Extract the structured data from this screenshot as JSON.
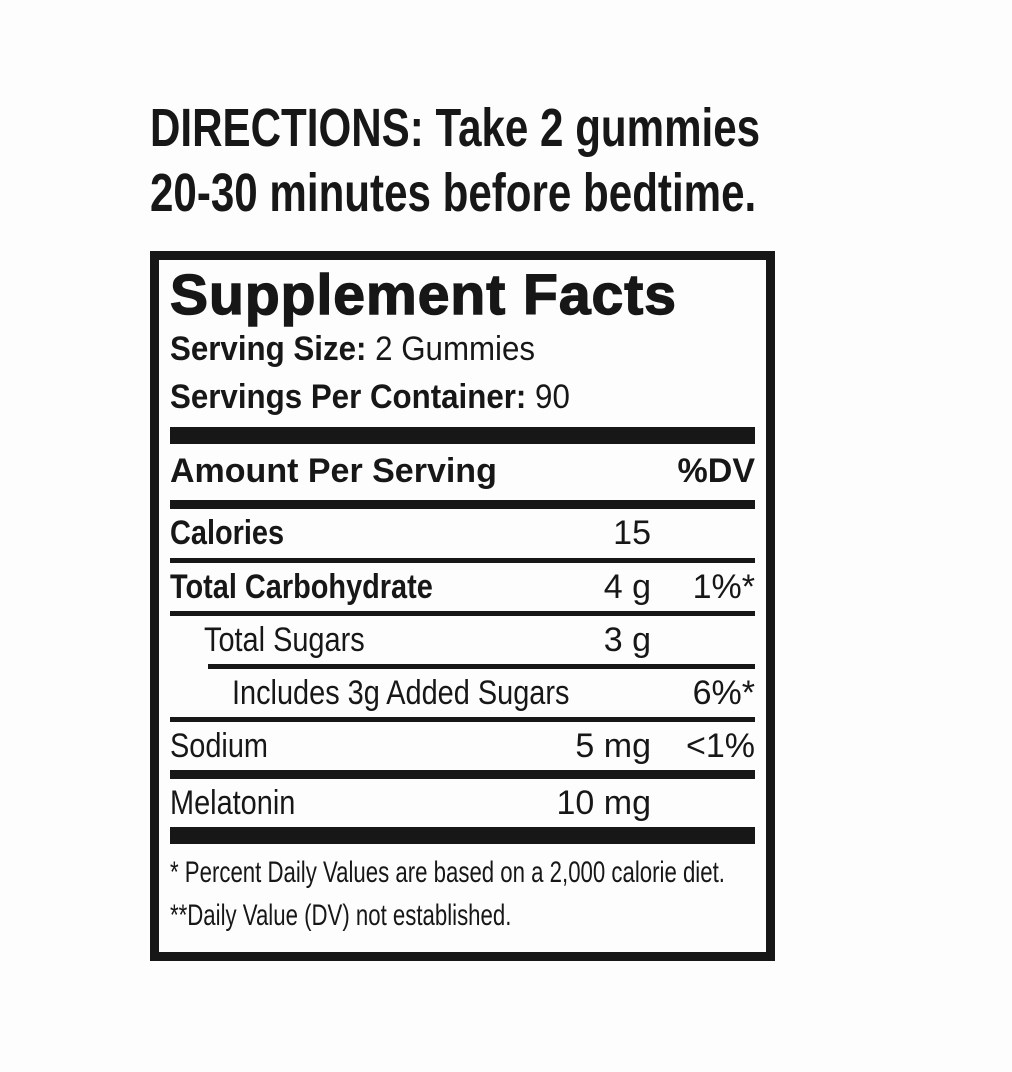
{
  "directions": {
    "line1": "DIRECTIONS: Take 2 gummies",
    "line2": "20-30 minutes before bedtime."
  },
  "panel": {
    "title": "Supplement Facts",
    "serving_size_label": "Serving Size:",
    "serving_size_value": "2 Gummies",
    "servings_per_container_label": "Servings Per Container:",
    "servings_per_container_value": "90",
    "header": {
      "amount_label": "Amount Per Serving",
      "dv_label": "%DV"
    },
    "rows": [
      {
        "name": "Calories",
        "amount": "15",
        "dv": ""
      },
      {
        "name": "Total Carbohydrate",
        "amount": "4 g",
        "dv": "1%*"
      },
      {
        "name": "Total Sugars",
        "amount": "3 g",
        "dv": ""
      },
      {
        "name": "Includes 3g Added Sugars",
        "amount": "",
        "dv": "6%*"
      },
      {
        "name": "Sodium",
        "amount": "5 mg",
        "dv": "<1%"
      },
      {
        "name": "Melatonin",
        "amount": "10 mg",
        "dv": ""
      }
    ],
    "footnotes": [
      "* Percent Daily Values are based on a 2,000 calorie diet.",
      "**Daily Value (DV) not established."
    ]
  },
  "colors": {
    "text": "#171717",
    "background": "#fdfdfd"
  }
}
